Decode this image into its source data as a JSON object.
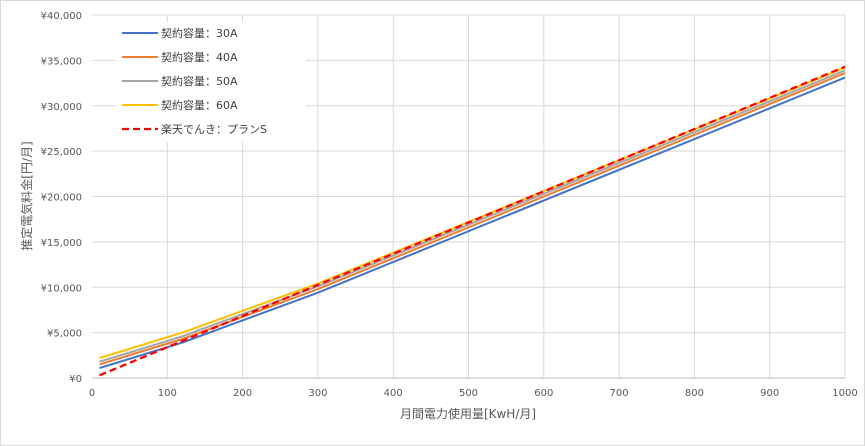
{
  "chart_data": {
    "type": "line",
    "title": "",
    "xlabel": "月間電力使用量[KwH/月]",
    "ylabel": "推定電気料金[円/月]",
    "xlim": [
      0,
      1000
    ],
    "ylim": [
      0,
      40000
    ],
    "x_ticks": [
      "0",
      "100",
      "200",
      "300",
      "400",
      "500",
      "600",
      "700",
      "800",
      "900",
      "1000"
    ],
    "y_ticks": [
      "¥0",
      "¥5,000",
      "¥10,000",
      "¥15,000",
      "¥20,000",
      "¥25,000",
      "¥30,000",
      "¥35,000",
      "¥40,000"
    ],
    "grid": "vertical and horizontal",
    "legend_position": "top-left",
    "series": [
      {
        "name": "契約容量：30A",
        "color": "#4472C4",
        "dash": false,
        "x": [
          10,
          120,
          300,
          1000
        ],
        "y": [
          1100,
          3900,
          9400,
          33100
        ]
      },
      {
        "name": "契約容量：40A",
        "color": "#ED7D31",
        "dash": false,
        "x": [
          10,
          120,
          300,
          1000
        ],
        "y": [
          1500,
          4300,
          9800,
          33600
        ]
      },
      {
        "name": "契約容量：50A",
        "color": "#A5A5A5",
        "dash": false,
        "x": [
          10,
          120,
          300,
          1000
        ],
        "y": [
          1800,
          4600,
          10100,
          33900
        ]
      },
      {
        "name": "契約容量：60A",
        "color": "#FFC000",
        "dash": false,
        "x": [
          10,
          120,
          300,
          1000
        ],
        "y": [
          2200,
          5000,
          10400,
          34200
        ]
      },
      {
        "name": "楽天でんき：プランS",
        "color": "#FF0000",
        "dash": true,
        "x": [
          10,
          1000
        ],
        "y": [
          300,
          34300
        ]
      }
    ]
  }
}
